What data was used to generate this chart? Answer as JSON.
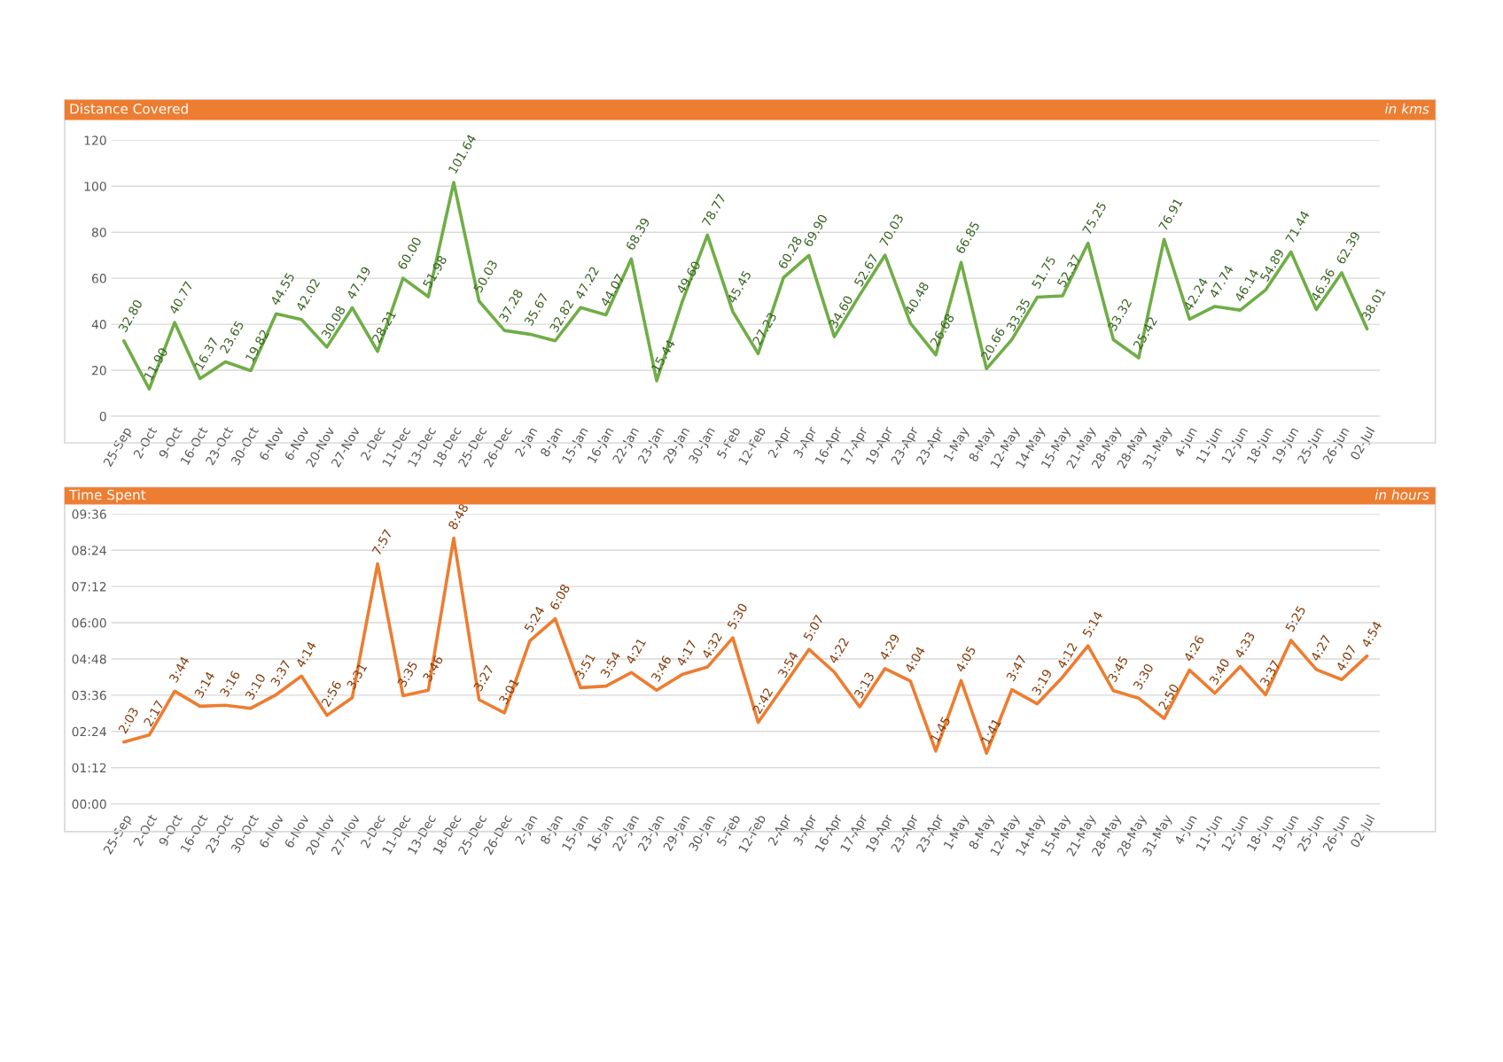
{
  "chart_data": [
    {
      "type": "line",
      "title": "Distance Covered",
      "subtitle": "in kms",
      "categories": [
        "25-Sep",
        "2-Oct",
        "9-Oct",
        "16-Oct",
        "23-Oct",
        "30-Oct",
        "6-Nov",
        "6-Nov",
        "20-Nov",
        "27-Nov",
        "2-Dec",
        "11-Dec",
        "13-Dec",
        "18-Dec",
        "25-Dec",
        "26-Dec",
        "2-Jan",
        "8-Jan",
        "15-Jan",
        "16-Jan",
        "22-Jan",
        "23-Jan",
        "29-Jan",
        "30-Jan",
        "5-Feb",
        "12-Feb",
        "2-Apr",
        "3-Apr",
        "16-Apr",
        "17-Apr",
        "19-Apr",
        "23-Apr",
        "23-Apr",
        "1-May",
        "8-May",
        "12-May",
        "14-May",
        "15-May",
        "21-May",
        "28-May",
        "28-May",
        "31-May",
        "4-Jun",
        "11-Jun",
        "12-Jun",
        "18-Jun",
        "19-Jun",
        "25-Jun",
        "26-Jun",
        "02-Jul"
      ],
      "series": [
        {
          "color": "#70ad47",
          "values": [
            32.8,
            11.9,
            40.77,
            16.37,
            23.65,
            19.82,
            44.55,
            42.02,
            30.08,
            47.19,
            28.21,
            60.0,
            51.98,
            101.64,
            50.03,
            37.28,
            35.67,
            32.82,
            47.22,
            44.07,
            68.39,
            15.44,
            49.6,
            78.77,
            45.45,
            27.23,
            60.28,
            69.9,
            34.6,
            52.67,
            70.03,
            40.48,
            26.68,
            66.85,
            20.66,
            33.35,
            51.75,
            52.37,
            75.25,
            33.32,
            25.42,
            76.91,
            42.24,
            47.74,
            46.14,
            54.89,
            71.44,
            46.36,
            62.39,
            38.01
          ],
          "value_labels": [
            "32.80",
            "11.90",
            "40.77",
            "16.37",
            "23.65",
            "19.82",
            "44.55",
            "42.02",
            "30.08",
            "47.19",
            "28.21",
            "60.00",
            "51.98",
            "101.64",
            "50.03",
            "37.28",
            "35.67",
            "32.82",
            "47.22",
            "44.07",
            "68.39",
            "15.44",
            "49.60",
            "78.77",
            "45.45",
            "27.23",
            "60.28",
            "69.90",
            "34.60",
            "52.67",
            "70.03",
            "40.48",
            "26.68",
            "66.85",
            "20.66",
            "33.35",
            "51.75",
            "52.37",
            "75.25",
            "33.32",
            "25.42",
            "76.91",
            "42.24",
            "47.74",
            "46.14",
            "54.89",
            "71.44",
            "46.36",
            "62.39",
            "38.01"
          ]
        }
      ],
      "ylim": [
        0,
        120
      ],
      "yticks": [
        0,
        20,
        40,
        60,
        80,
        100,
        120
      ],
      "grid": "y",
      "legend": false
    },
    {
      "type": "line",
      "title": "Time Spent",
      "subtitle": "in hours",
      "categories": [
        "25-Sep",
        "2-Oct",
        "9-Oct",
        "16-Oct",
        "23-Oct",
        "30-Oct",
        "6-Nov",
        "6-Nov",
        "20-Nov",
        "27-Nov",
        "2-Dec",
        "11-Dec",
        "13-Dec",
        "18-Dec",
        "25-Dec",
        "26-Dec",
        "2-Jan",
        "8-Jan",
        "15-Jan",
        "16-Jan",
        "22-Jan",
        "23-Jan",
        "29-Jan",
        "30-Jan",
        "5-Feb",
        "12-Feb",
        "2-Apr",
        "3-Apr",
        "16-Apr",
        "17-Apr",
        "19-Apr",
        "23-Apr",
        "23-Apr",
        "1-May",
        "8-May",
        "12-May",
        "14-May",
        "15-May",
        "21-May",
        "28-May",
        "28-May",
        "31-May",
        "4-Jun",
        "11-Jun",
        "12-Jun",
        "18-Jun",
        "19-Jun",
        "25-Jun",
        "26-Jun",
        "02-Jul"
      ],
      "series": [
        {
          "color": "#ed7d31",
          "values": [
            2.05,
            2.2833,
            3.7333,
            3.2333,
            3.2667,
            3.1667,
            3.6167,
            4.2333,
            2.9333,
            3.5167,
            7.95,
            3.5833,
            3.7667,
            8.8,
            3.45,
            3.0167,
            5.4,
            6.1333,
            3.85,
            3.9,
            4.35,
            3.7667,
            4.2833,
            4.5333,
            5.5,
            2.7,
            3.9,
            5.1167,
            4.3667,
            3.2167,
            4.4833,
            4.0667,
            1.75,
            4.0833,
            1.6833,
            3.7833,
            3.3167,
            4.2,
            5.2333,
            3.75,
            3.5,
            2.8333,
            4.4333,
            3.6667,
            4.55,
            3.6167,
            5.4167,
            4.45,
            4.1167,
            4.9
          ],
          "value_labels": [
            "2:03",
            "2:17",
            "3:44",
            "3:14",
            "3:16",
            "3:10",
            "3:37",
            "4:14",
            "2:56",
            "3:31",
            "7:57",
            "3:35",
            "3:46",
            "8:48",
            "3:27",
            "3:01",
            "5:24",
            "6:08",
            "3:51",
            "3:54",
            "4:21",
            "3:46",
            "4:17",
            "4:32",
            "5:30",
            "2:42",
            "3:54",
            "5:07",
            "4:22",
            "3:13",
            "4:29",
            "4:04",
            "1:45",
            "4:05",
            "1:41",
            "3:47",
            "3:19",
            "4:12",
            "5:14",
            "3:45",
            "3:30",
            "2:50",
            "4:26",
            "3:40",
            "4:33",
            "3:37",
            "5:25",
            "4:27",
            "4:07",
            "4:54"
          ]
        }
      ],
      "ylim": [
        0,
        9.6
      ],
      "yticks": [
        {
          "value": 0,
          "label": "00:00"
        },
        {
          "value": 1.2,
          "label": "01:12"
        },
        {
          "value": 2.4,
          "label": "02:24"
        },
        {
          "value": 3.6,
          "label": "03:36"
        },
        {
          "value": 4.8,
          "label": "04:48"
        },
        {
          "value": 6,
          "label": "06:00"
        },
        {
          "value": 7.2,
          "label": "07:12"
        },
        {
          "value": 8.4,
          "label": "08:24"
        },
        {
          "value": 9.6,
          "label": "09:36"
        }
      ],
      "grid": "y",
      "legend": false
    }
  ]
}
